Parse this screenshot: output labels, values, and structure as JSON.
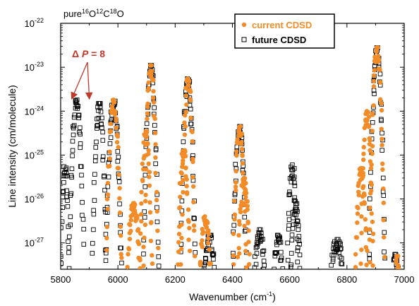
{
  "chart_data": {
    "type": "scatter",
    "title_parts": [
      "pure",
      "16",
      "O",
      "12",
      "C",
      "18",
      "O"
    ],
    "xlabel": "Wavenumber",
    "xlabel_unit_parts": [
      "(cm",
      "-1",
      ")"
    ],
    "ylabel": "Line intensity (cm/molecule)",
    "xlim": [
      5800,
      7000
    ],
    "ylim_log10": [
      -27.6,
      -22
    ],
    "y_scale": "log",
    "x_ticks": [
      5800,
      6000,
      6200,
      6400,
      6600,
      6800,
      7000
    ],
    "x_tick_labels": [
      "5800",
      "6000",
      "6200",
      "6400",
      "6600",
      "6800",
      "7000"
    ],
    "y_ticks": [
      {
        "base": "10",
        "exp": "-27",
        "value": 1e-27
      },
      {
        "base": "10",
        "exp": "-26",
        "value": 1e-26
      },
      {
        "base": "10",
        "exp": "-25",
        "value": 1e-25
      },
      {
        "base": "10",
        "exp": "-24",
        "value": 1e-24
      },
      {
        "base": "10",
        "exp": "-23",
        "value": 1e-23
      },
      {
        "base": "10",
        "exp": "-22",
        "value": 1e-22
      }
    ],
    "legend_position": "top-right",
    "annotation": {
      "label_parts": [
        "Δ ",
        "P",
        " = 8"
      ],
      "target_x": [
        5840,
        5900
      ]
    },
    "series": [
      {
        "name": "current CDSD",
        "marker": "dot",
        "color": "#f28c28",
        "bands": [
          {
            "center": 5985,
            "peak": 1.8e-24,
            "halfwidth": 35
          },
          {
            "center": 6115,
            "peak": 1.1e-23,
            "halfwidth": 32
          },
          {
            "center": 6098,
            "peak": 3.5e-25,
            "halfwidth": 28
          },
          {
            "center": 6245,
            "peak": 5.5e-24,
            "halfwidth": 32
          },
          {
            "center": 6230,
            "peak": 1.5e-25,
            "halfwidth": 28
          },
          {
            "center": 6425,
            "peak": 4.5e-25,
            "halfwidth": 30
          },
          {
            "center": 6440,
            "peak": 3e-26,
            "halfwidth": 28
          },
          {
            "center": 6905,
            "peak": 2.8e-23,
            "halfwidth": 35
          },
          {
            "center": 6870,
            "peak": 1e-24,
            "halfwidth": 30
          },
          {
            "center": 6850,
            "peak": 5e-26,
            "halfwidth": 28
          },
          {
            "center": 6055,
            "peak": 8e-27,
            "halfwidth": 30
          },
          {
            "center": 6305,
            "peak": 4e-27,
            "halfwidth": 25
          },
          {
            "center": 6975,
            "peak": 5e-28,
            "halfwidth": 10
          }
        ]
      },
      {
        "name": "future CDSD",
        "marker": "open-square",
        "color": "#000000",
        "bands": [
          {
            "center": 5855,
            "peak": 1.8e-24,
            "halfwidth": 35
          },
          {
            "center": 5935,
            "peak": 1.5e-24,
            "halfwidth": 32
          },
          {
            "center": 5815,
            "peak": 6e-26,
            "halfwidth": 20
          },
          {
            "center": 5985,
            "peak": 1.8e-24,
            "halfwidth": 36
          },
          {
            "center": 6115,
            "peak": 1.1e-23,
            "halfwidth": 34
          },
          {
            "center": 6245,
            "peak": 5.5e-24,
            "halfwidth": 34
          },
          {
            "center": 6320,
            "peak": 1.5e-27,
            "halfwidth": 25
          },
          {
            "center": 6425,
            "peak": 4.5e-25,
            "halfwidth": 32
          },
          {
            "center": 6495,
            "peak": 2e-27,
            "halfwidth": 25
          },
          {
            "center": 6610,
            "peak": 6e-26,
            "halfwidth": 25
          },
          {
            "center": 6620,
            "peak": 1e-26,
            "halfwidth": 22
          },
          {
            "center": 6560,
            "peak": 1.5e-27,
            "halfwidth": 22
          },
          {
            "center": 6765,
            "peak": 1.2e-27,
            "halfwidth": 30
          },
          {
            "center": 6905,
            "peak": 2.8e-23,
            "halfwidth": 36
          },
          {
            "center": 6970,
            "peak": 5.5e-28,
            "halfwidth": 15
          }
        ]
      }
    ]
  }
}
